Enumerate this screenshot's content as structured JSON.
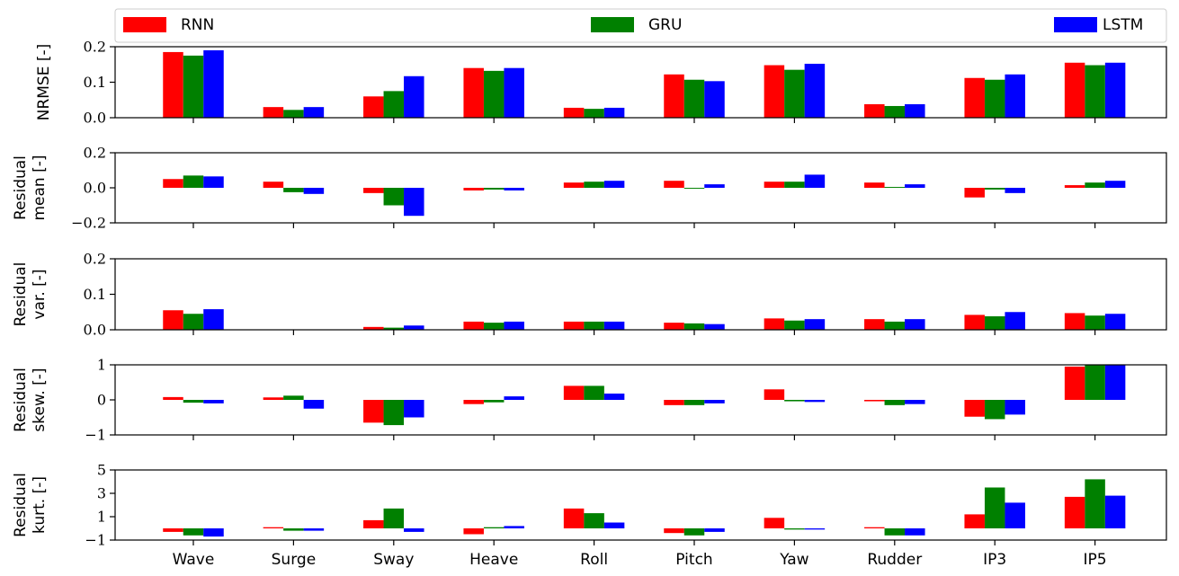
{
  "chart_data": {
    "type": "bar",
    "categories": [
      "Wave",
      "Surge",
      "Sway",
      "Heave",
      "Roll",
      "Pitch",
      "Yaw",
      "Rudder",
      "IP3",
      "IP5"
    ],
    "legend": {
      "placement": "top",
      "entries": [
        {
          "name": "RNN",
          "color": "#ff0000"
        },
        {
          "name": "GRU",
          "color": "#008000"
        },
        {
          "name": "LSTM",
          "color": "#0000ff"
        }
      ]
    },
    "panels": [
      {
        "ylabel": [
          "NRMSE [-]"
        ],
        "ylim": [
          0,
          0.2
        ],
        "yticks": [
          0.0,
          0.1,
          0.2
        ],
        "ytick_labels": [
          "0.0",
          "0.1",
          "0.2"
        ],
        "series": [
          {
            "name": "RNN",
            "values": [
              0.185,
              0.03,
              0.06,
              0.14,
              0.028,
              0.122,
              0.148,
              0.038,
              0.112,
              0.155
            ]
          },
          {
            "name": "GRU",
            "values": [
              0.175,
              0.022,
              0.075,
              0.132,
              0.025,
              0.107,
              0.135,
              0.033,
              0.107,
              0.148
            ]
          },
          {
            "name": "LSTM",
            "values": [
              0.19,
              0.03,
              0.117,
              0.14,
              0.028,
              0.103,
              0.152,
              0.038,
              0.122,
              0.155
            ]
          }
        ]
      },
      {
        "ylabel": [
          "Residual",
          "mean [-]"
        ],
        "ylim": [
          -0.2,
          0.2
        ],
        "yticks": [
          -0.2,
          0.0,
          0.2
        ],
        "ytick_labels": [
          "−0.2",
          "0.0",
          "0.2"
        ],
        "series": [
          {
            "name": "RNN",
            "values": [
              0.05,
              0.035,
              -0.03,
              -0.015,
              0.03,
              0.04,
              0.035,
              0.03,
              -0.055,
              0.015
            ]
          },
          {
            "name": "GRU",
            "values": [
              0.07,
              -0.025,
              -0.1,
              -0.01,
              0.035,
              -0.005,
              0.035,
              0.005,
              -0.01,
              0.03
            ]
          },
          {
            "name": "LSTM",
            "values": [
              0.065,
              -0.035,
              -0.16,
              -0.015,
              0.04,
              0.02,
              0.075,
              0.02,
              -0.03,
              0.04
            ]
          }
        ]
      },
      {
        "ylabel": [
          "Residual",
          "var. [-]"
        ],
        "ylim": [
          0,
          0.2
        ],
        "yticks": [
          0.0,
          0.1,
          0.2
        ],
        "ytick_labels": [
          "0.0",
          "0.1",
          "0.2"
        ],
        "series": [
          {
            "name": "RNN",
            "values": [
              0.055,
              0.001,
              0.008,
              0.023,
              0.023,
              0.02,
              0.032,
              0.03,
              0.042,
              0.047
            ]
          },
          {
            "name": "GRU",
            "values": [
              0.045,
              0.001,
              0.006,
              0.02,
              0.023,
              0.018,
              0.026,
              0.023,
              0.038,
              0.04
            ]
          },
          {
            "name": "LSTM",
            "values": [
              0.058,
              0.001,
              0.012,
              0.023,
              0.023,
              0.016,
              0.03,
              0.03,
              0.05,
              0.045
            ]
          }
        ]
      },
      {
        "ylabel": [
          "Residual",
          "skew. [-]"
        ],
        "ylim": [
          -1,
          1
        ],
        "yticks": [
          -1,
          0,
          1
        ],
        "ytick_labels": [
          "−1",
          "0",
          "1"
        ],
        "series": [
          {
            "name": "RNN",
            "values": [
              0.08,
              0.07,
              -0.65,
              -0.12,
              0.4,
              -0.15,
              0.3,
              -0.04,
              -0.48,
              0.95
            ]
          },
          {
            "name": "GRU",
            "values": [
              -0.08,
              0.12,
              -0.72,
              -0.07,
              0.4,
              -0.15,
              -0.04,
              -0.15,
              -0.55,
              1.0
            ]
          },
          {
            "name": "LSTM",
            "values": [
              -0.1,
              -0.25,
              -0.5,
              0.1,
              0.18,
              -0.1,
              -0.06,
              -0.12,
              -0.42,
              1.0
            ]
          }
        ]
      },
      {
        "ylabel": [
          "Residual",
          "kurt. [-]"
        ],
        "ylim": [
          -1,
          5
        ],
        "yticks": [
          -1,
          1,
          3,
          5
        ],
        "ytick_labels": [
          "−1",
          "1",
          "3",
          "5"
        ],
        "series": [
          {
            "name": "RNN",
            "values": [
              -0.3,
              0.1,
              0.7,
              -0.5,
              1.7,
              -0.4,
              0.9,
              0.1,
              1.2,
              2.7
            ]
          },
          {
            "name": "GRU",
            "values": [
              -0.6,
              -0.2,
              1.7,
              0.1,
              1.3,
              -0.6,
              -0.1,
              -0.6,
              3.5,
              4.2
            ]
          },
          {
            "name": "LSTM",
            "values": [
              -0.7,
              -0.2,
              -0.3,
              0.2,
              0.5,
              -0.3,
              -0.1,
              -0.6,
              2.2,
              2.8
            ]
          }
        ]
      }
    ]
  }
}
